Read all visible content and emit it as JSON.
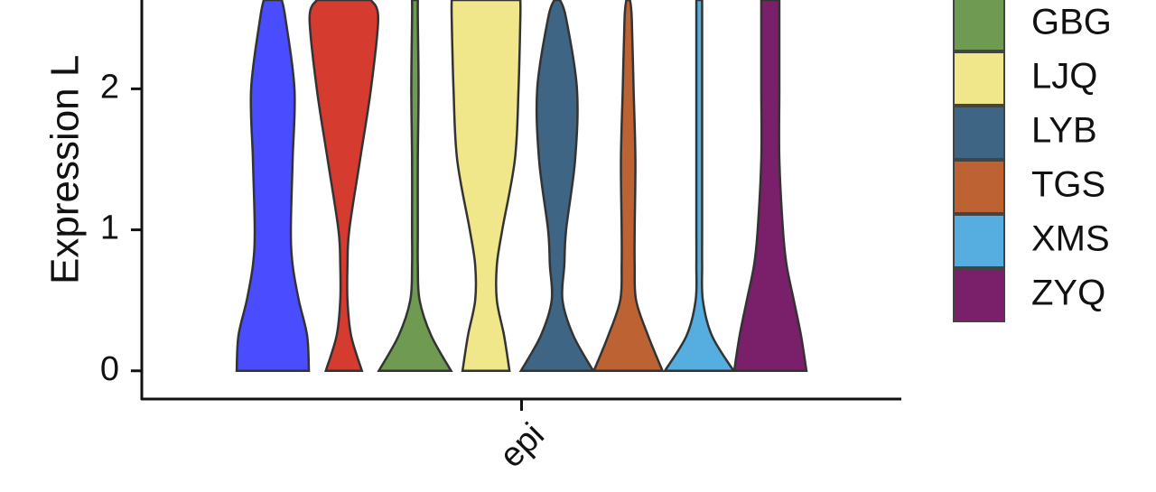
{
  "chart_data": {
    "type": "violin",
    "y_label": "Expression L",
    "categories": [
      "epi"
    ],
    "ylim": [
      -0.2,
      2.63
    ],
    "yticks": [
      0,
      1,
      2
    ],
    "levels": [
      0,
      0.25,
      0.5,
      0.75,
      1,
      1.5,
      2,
      2.5,
      2.63
    ],
    "series": [
      {
        "name": null,
        "color": "#4a4cff",
        "density": [
          1.0,
          0.95,
          0.72,
          0.55,
          0.5,
          0.55,
          0.6,
          0.35,
          0.25
        ]
      },
      {
        "name": null,
        "color": "#d63b2f",
        "density": [
          0.5,
          0.2,
          0.1,
          0.1,
          0.15,
          0.45,
          0.75,
          0.95,
          0.75
        ]
      },
      {
        "name": "GBG",
        "color": "#6f9a52",
        "density": [
          1.0,
          0.45,
          0.13,
          0.08,
          0.08,
          0.08,
          0.1,
          0.08,
          0.08
        ]
      },
      {
        "name": "LJQ",
        "color": "#f0e68a",
        "density": [
          0.65,
          0.5,
          0.3,
          0.3,
          0.45,
          0.8,
          0.9,
          0.95,
          0.95
        ]
      },
      {
        "name": "LYB",
        "color": "#3f6584",
        "density": [
          1.0,
          0.45,
          0.15,
          0.2,
          0.25,
          0.5,
          0.55,
          0.25,
          0.08
        ]
      },
      {
        "name": "TGS",
        "color": "#bd6232",
        "density": [
          0.95,
          0.55,
          0.22,
          0.18,
          0.18,
          0.2,
          0.15,
          0.1,
          0.05
        ]
      },
      {
        "name": "XMS",
        "color": "#56aee0",
        "density": [
          0.95,
          0.35,
          0.1,
          0.08,
          0.08,
          0.08,
          0.08,
          0.08,
          0.08
        ]
      },
      {
        "name": "ZYQ",
        "color": "#7a1f6a",
        "density": [
          1.0,
          0.85,
          0.65,
          0.45,
          0.35,
          0.25,
          0.25,
          0.25,
          0.25
        ]
      }
    ]
  }
}
